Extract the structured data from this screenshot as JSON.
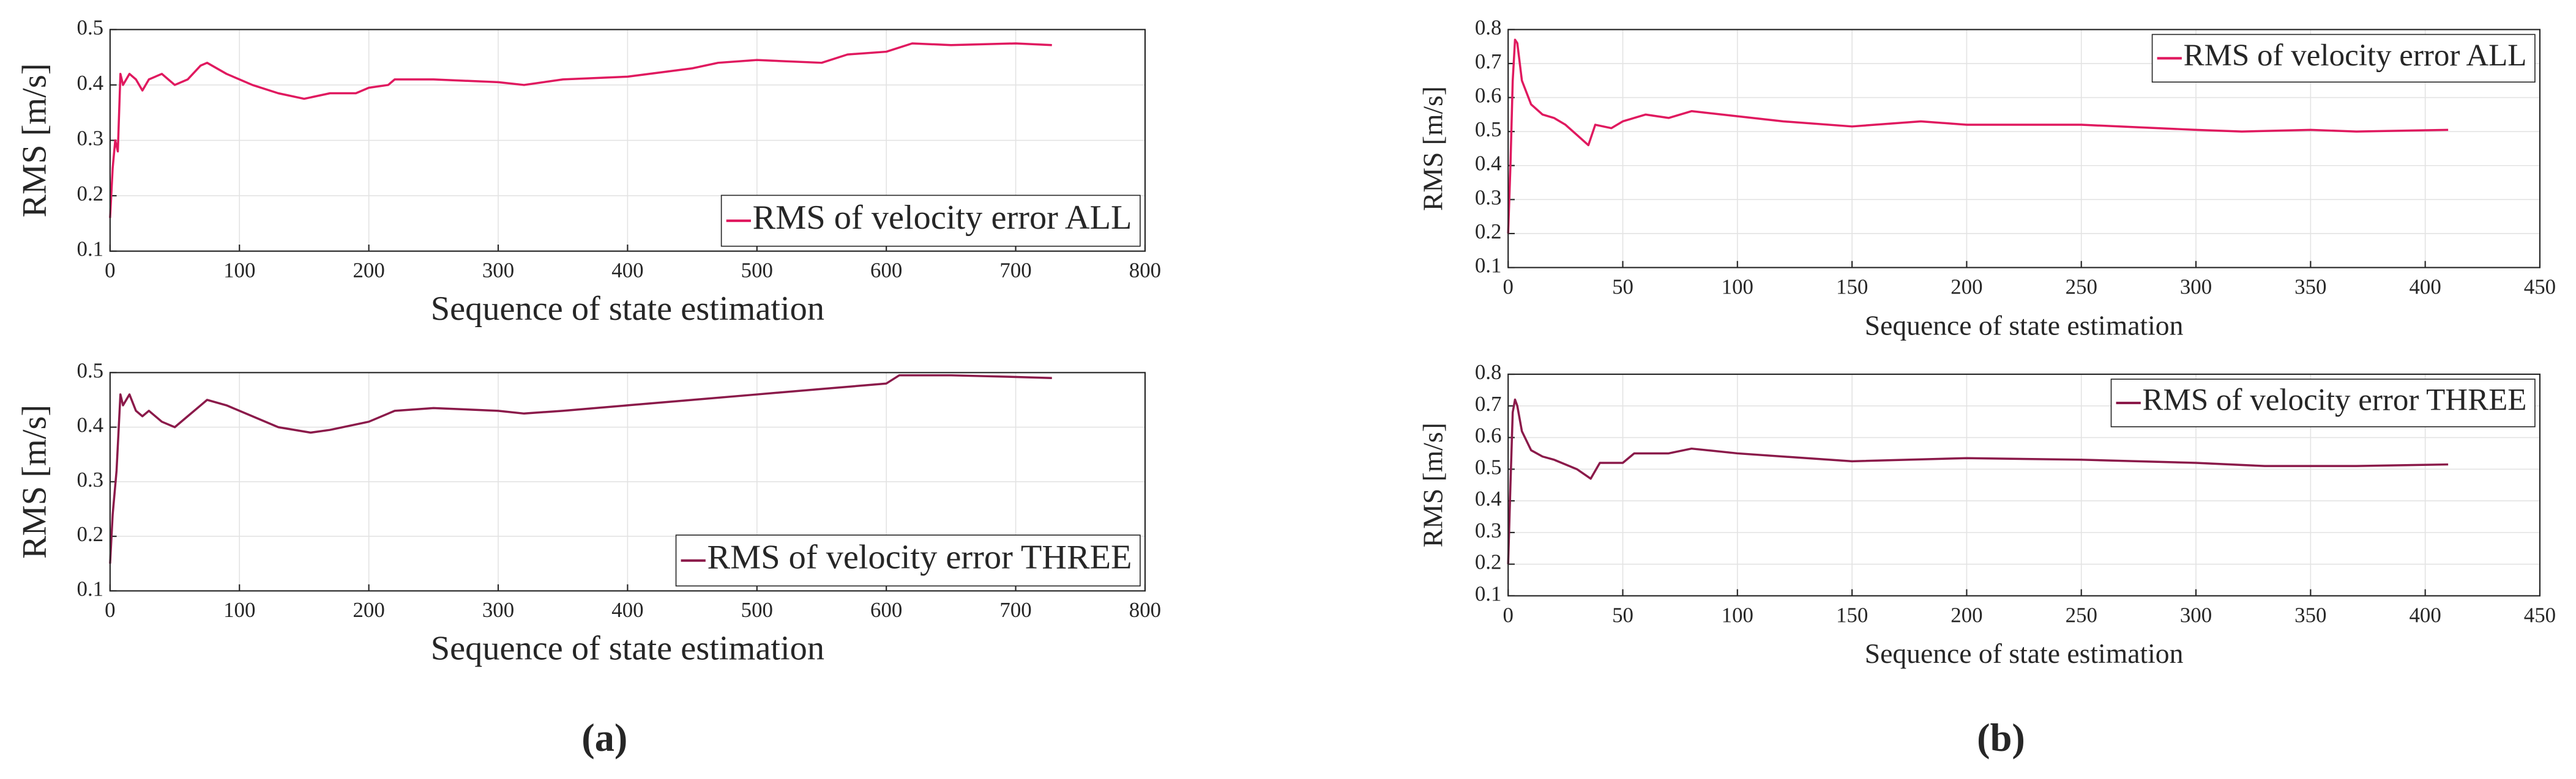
{
  "panel_labels": [
    "(a)",
    "(b)"
  ],
  "chart_data": [
    {
      "type": "line",
      "xlabel": "Sequence of state estimation",
      "ylabel": "RMS [m/s]",
      "xlim": [
        0,
        800
      ],
      "xticks": [
        0,
        100,
        200,
        300,
        400,
        500,
        600,
        700,
        800
      ],
      "ylim": [
        0.1,
        0.5
      ],
      "yticks": [
        0.1,
        0.2,
        0.3,
        0.4,
        0.5
      ],
      "grid": true,
      "legend": "lower right",
      "series": [
        {
          "name": "RMS of velocity error ALL",
          "color": "#e0195f",
          "x": [
            0,
            2,
            4,
            6,
            8,
            10,
            15,
            20,
            25,
            30,
            40,
            50,
            60,
            70,
            75,
            90,
            110,
            130,
            150,
            170,
            190,
            200,
            215,
            220,
            250,
            300,
            320,
            350,
            400,
            450,
            470,
            500,
            550,
            570,
            600,
            620,
            650,
            700,
            728
          ],
          "values": [
            0.16,
            0.25,
            0.3,
            0.28,
            0.42,
            0.4,
            0.42,
            0.41,
            0.39,
            0.41,
            0.42,
            0.4,
            0.41,
            0.435,
            0.44,
            0.42,
            0.4,
            0.385,
            0.375,
            0.385,
            0.385,
            0.395,
            0.4,
            0.41,
            0.41,
            0.405,
            0.4,
            0.41,
            0.415,
            0.43,
            0.44,
            0.445,
            0.44,
            0.455,
            0.46,
            0.475,
            0.472,
            0.475,
            0.472
          ]
        }
      ]
    },
    {
      "type": "line",
      "xlabel": "Sequence of state estimation",
      "ylabel": "RMS [m/s]",
      "xlim": [
        0,
        800
      ],
      "xticks": [
        0,
        100,
        200,
        300,
        400,
        500,
        600,
        700,
        800
      ],
      "ylim": [
        0.1,
        0.5
      ],
      "yticks": [
        0.1,
        0.2,
        0.3,
        0.4,
        0.5
      ],
      "grid": true,
      "legend": "lower right",
      "series": [
        {
          "name": "RMS of velocity error THREE",
          "color": "#8b1a4a",
          "x": [
            0,
            2,
            5,
            8,
            10,
            15,
            20,
            25,
            30,
            40,
            50,
            60,
            70,
            75,
            90,
            110,
            130,
            155,
            170,
            200,
            220,
            250,
            300,
            320,
            350,
            400,
            450,
            500,
            550,
            600,
            610,
            650,
            700,
            728
          ],
          "values": [
            0.15,
            0.24,
            0.32,
            0.46,
            0.44,
            0.46,
            0.43,
            0.42,
            0.43,
            0.41,
            0.4,
            0.42,
            0.44,
            0.45,
            0.44,
            0.42,
            0.4,
            0.39,
            0.395,
            0.41,
            0.43,
            0.435,
            0.43,
            0.425,
            0.43,
            0.44,
            0.45,
            0.46,
            0.47,
            0.48,
            0.495,
            0.495,
            0.492,
            0.49
          ]
        }
      ]
    },
    {
      "type": "line",
      "xlabel": "Sequence of state estimation",
      "ylabel": "RMS [m/s]",
      "xlim": [
        0,
        450
      ],
      "xticks": [
        0,
        50,
        100,
        150,
        200,
        250,
        300,
        350,
        400,
        450
      ],
      "ylim": [
        0.1,
        0.8
      ],
      "yticks": [
        0.1,
        0.2,
        0.3,
        0.4,
        0.5,
        0.6,
        0.7,
        0.8
      ],
      "grid": true,
      "legend": "upper right",
      "series": [
        {
          "name": "RMS of velocity error ALL",
          "color": "#e0195f",
          "x": [
            0,
            1,
            2,
            3,
            4,
            6,
            10,
            15,
            20,
            25,
            30,
            35,
            38,
            45,
            50,
            60,
            70,
            80,
            100,
            120,
            150,
            180,
            200,
            250,
            300,
            320,
            350,
            370,
            410
          ],
          "values": [
            0.2,
            0.4,
            0.65,
            0.77,
            0.76,
            0.65,
            0.58,
            0.55,
            0.54,
            0.52,
            0.49,
            0.46,
            0.52,
            0.51,
            0.53,
            0.55,
            0.54,
            0.56,
            0.545,
            0.53,
            0.515,
            0.53,
            0.52,
            0.52,
            0.505,
            0.5,
            0.505,
            0.5,
            0.505
          ]
        }
      ]
    },
    {
      "type": "line",
      "xlabel": "Sequence of state estimation",
      "ylabel": "RMS [m/s]",
      "xlim": [
        0,
        450
      ],
      "xticks": [
        0,
        50,
        100,
        150,
        200,
        250,
        300,
        350,
        400,
        450
      ],
      "ylim": [
        0.1,
        0.8
      ],
      "yticks": [
        0.1,
        0.2,
        0.3,
        0.4,
        0.5,
        0.6,
        0.7,
        0.8
      ],
      "grid": true,
      "legend": "upper right",
      "series": [
        {
          "name": "RMS of velocity error THREE",
          "color": "#8b1a4a",
          "x": [
            0,
            1,
            2,
            3,
            4,
            6,
            10,
            15,
            20,
            30,
            36,
            40,
            50,
            55,
            70,
            80,
            100,
            150,
            200,
            250,
            300,
            330,
            370,
            410
          ],
          "values": [
            0.2,
            0.45,
            0.68,
            0.72,
            0.7,
            0.62,
            0.56,
            0.54,
            0.53,
            0.5,
            0.47,
            0.52,
            0.52,
            0.55,
            0.55,
            0.565,
            0.55,
            0.525,
            0.535,
            0.53,
            0.52,
            0.51,
            0.51,
            0.515
          ]
        }
      ]
    }
  ]
}
